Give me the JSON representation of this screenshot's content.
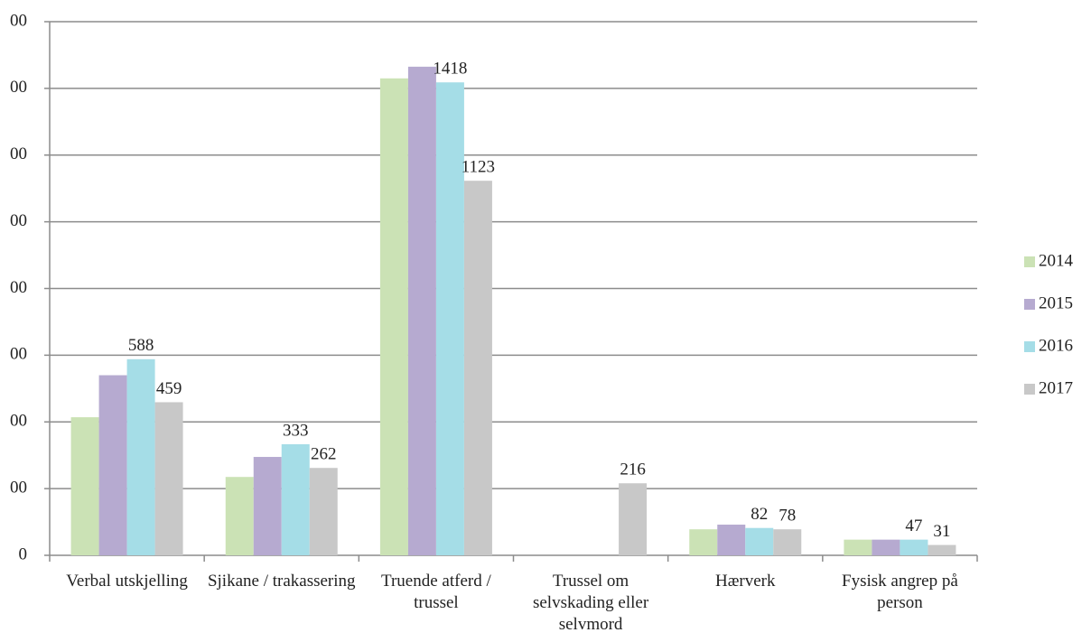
{
  "chart_data": {
    "type": "bar",
    "categories": [
      "Verbal utskjelling",
      "Sjikane / trakassering",
      "Truende atferd / trussel",
      "Trussel om selvskading eller selvmord",
      "Hærverk",
      "Fysisk angrep på person"
    ],
    "series": [
      {
        "name": "2014",
        "color": "#cbe2b5",
        "values": [
          414,
          235,
          1430,
          null,
          78,
          47
        ],
        "data_labels": false
      },
      {
        "name": "2015",
        "color": "#b6aad0",
        "values": [
          540,
          295,
          1465,
          null,
          92,
          47
        ],
        "data_labels": false
      },
      {
        "name": "2016",
        "color": "#a5dde7",
        "values": [
          588,
          333,
          1418,
          null,
          82,
          47
        ],
        "data_labels": true
      },
      {
        "name": "2017",
        "color": "#c8c8c8",
        "values": [
          459,
          262,
          1123,
          216,
          78,
          31
        ],
        "data_labels": true
      }
    ],
    "ylim": [
      0,
      1600
    ],
    "yticks": [
      0,
      {
        "value": 200,
        "label": "00"
      },
      {
        "value": 400,
        "label": "00"
      },
      {
        "value": 600,
        "label": "00"
      },
      {
        "value": 800,
        "label": "00"
      },
      {
        "value": 1000,
        "label": "00"
      },
      {
        "value": 1200,
        "label": "00"
      },
      {
        "value": 1400,
        "label": "00"
      },
      {
        "value": 1600,
        "label": "00"
      }
    ],
    "grid": true,
    "legend": "right"
  }
}
